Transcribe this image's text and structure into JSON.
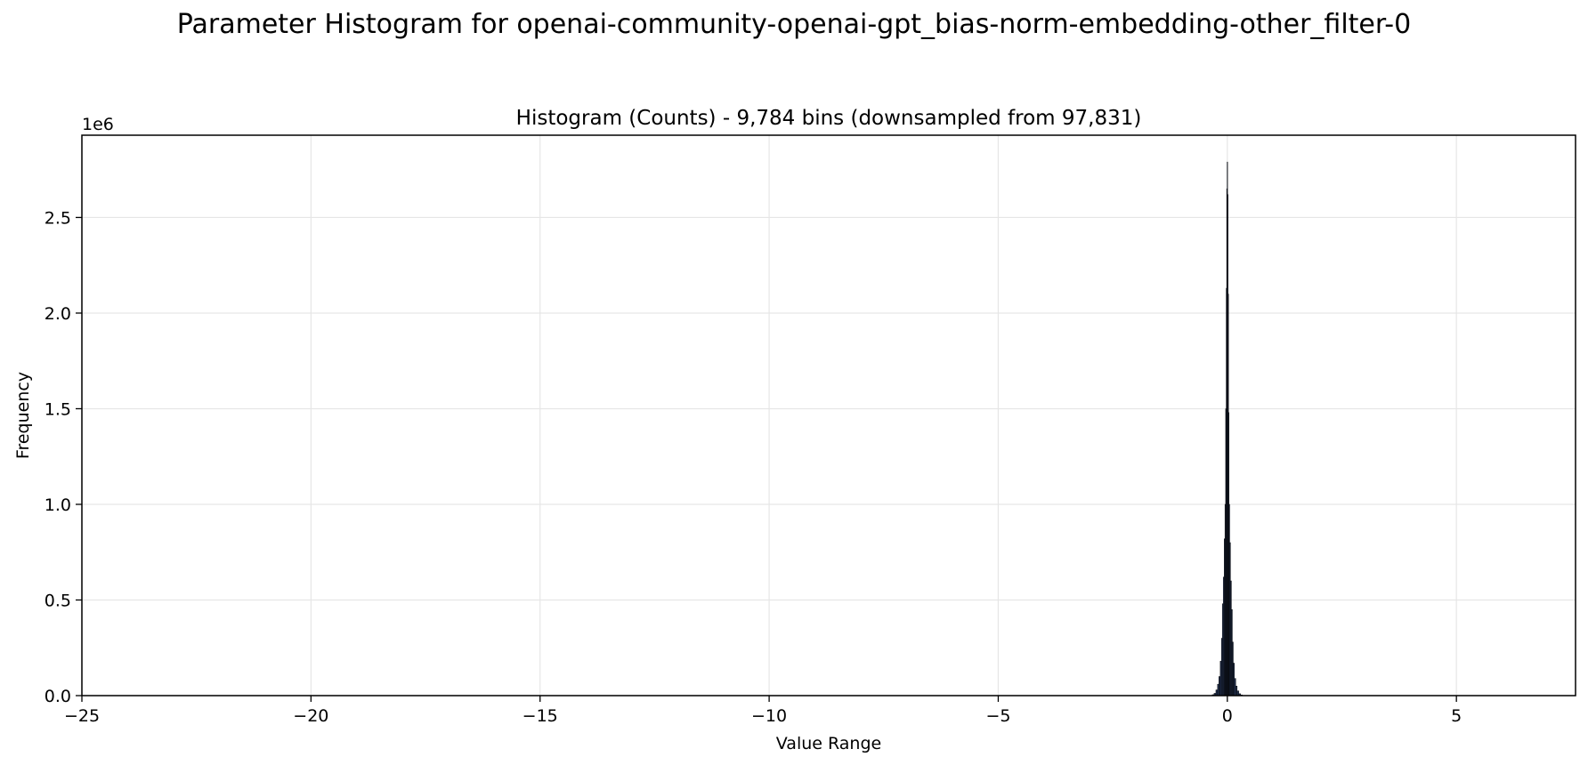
{
  "figure": {
    "suptitle": "Parameter Histogram for openai-community-openai-gpt_bias-norm-embedding-other_filter-0"
  },
  "colors": {
    "bar_fill": "#1f2d4a",
    "bar_edge": "#000000",
    "grid": "#e6e6e6",
    "axes": "#000000"
  },
  "chart_data": {
    "type": "bar",
    "title": "Histogram (Counts) - 9,784 bins (downsampled from 97,831)",
    "xlabel": "Value Range",
    "ylabel": "Frequency",
    "y_offset_text": "1e6",
    "xlim": [
      -25,
      7.6
    ],
    "ylim": [
      0,
      2.93
    ],
    "y_scale_note": "y values in units of 1e6",
    "x_ticks": [
      -25,
      -20,
      -15,
      -10,
      -5,
      0,
      5
    ],
    "x_tick_labels": [
      "−25",
      "−20",
      "−15",
      "−10",
      "−5",
      "0",
      "5"
    ],
    "y_ticks": [
      0.0,
      0.5,
      1.0,
      1.5,
      2.0,
      2.5
    ],
    "y_tick_labels": [
      "0.0",
      "0.5",
      "1.0",
      "1.5",
      "2.0",
      "2.5"
    ],
    "grid": true,
    "legend": "none",
    "series": [
      {
        "bins_center": [
          -0.31,
          -0.27,
          -0.23,
          -0.2,
          -0.17,
          -0.14,
          -0.12,
          -0.1,
          -0.08,
          -0.06,
          -0.045,
          -0.03,
          -0.02,
          -0.01,
          0.0,
          0.01,
          0.02,
          0.03,
          0.045,
          0.06,
          0.08,
          0.1,
          0.12,
          0.14,
          0.17,
          0.2,
          0.23,
          0.27,
          0.31
        ],
        "values": [
          0.005,
          0.012,
          0.03,
          0.06,
          0.1,
          0.18,
          0.3,
          0.48,
          0.62,
          0.82,
          1.0,
          1.5,
          2.13,
          2.65,
          2.79,
          2.62,
          2.1,
          1.48,
          1.0,
          0.8,
          0.6,
          0.45,
          0.28,
          0.17,
          0.09,
          0.05,
          0.025,
          0.01,
          0.004
        ]
      }
    ]
  }
}
